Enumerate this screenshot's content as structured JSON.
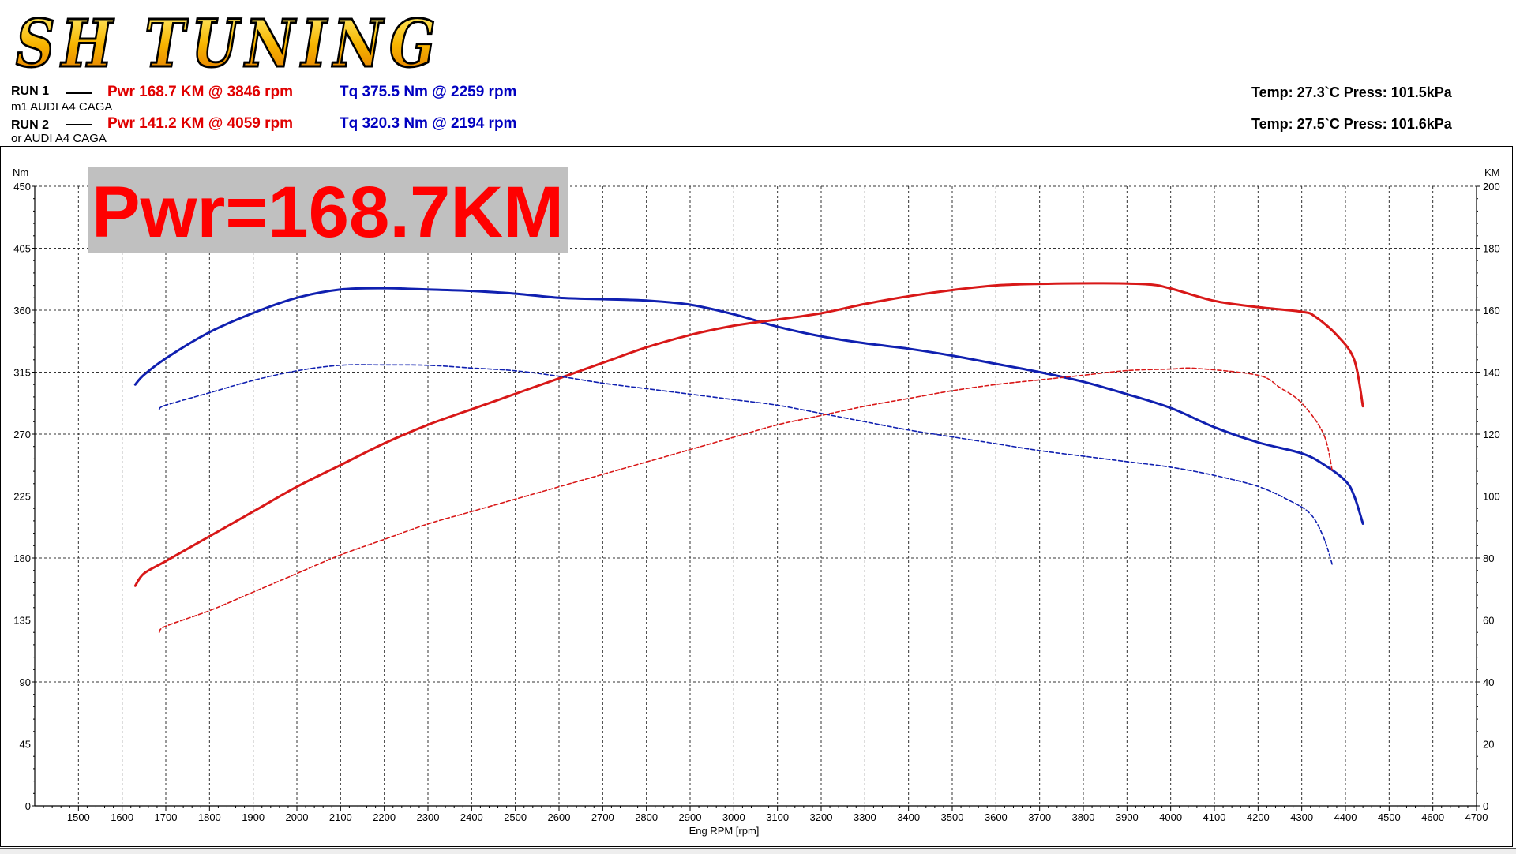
{
  "header": {
    "logo_text": "SH TUNING",
    "run1": {
      "label": "RUN 1",
      "car": "m1 AUDI A4 CAGA",
      "pwr": "Pwr  168.7 KM @ 3846 rpm",
      "tq": "Tq 375.5 Nm @ 2259 rpm",
      "env": "Temp: 27.3`C    Press: 101.5kPa"
    },
    "run2": {
      "label": "RUN 2",
      "car": "or AUDI A4 CAGA",
      "pwr": "Pwr  141.2 KM @ 4059 rpm",
      "tq": "Tq 320.3 Nm @ 2194 rpm",
      "env": "Temp: 27.5`C    Press: 101.6kPa"
    }
  },
  "banner": "Pwr=168.7KM",
  "colors": {
    "power": "#d81818",
    "torque": "#1020b0",
    "banner_bg": "#c0c0c0",
    "banner_text": "#ff0000"
  },
  "chart_data": {
    "type": "line",
    "xlabel": "Eng RPM [rpm]",
    "ylabel_left": "Nm",
    "ylabel_right": "KM",
    "xlim": [
      1400,
      4700
    ],
    "ylim_left": [
      0,
      450
    ],
    "ylim_right": [
      0,
      200
    ],
    "x_ticks": [
      1500,
      1600,
      1700,
      1800,
      1900,
      2000,
      2100,
      2200,
      2300,
      2400,
      2500,
      2600,
      2700,
      2800,
      2900,
      3000,
      3100,
      3200,
      3300,
      3400,
      3500,
      3600,
      3700,
      3800,
      3900,
      4000,
      4100,
      4200,
      4300,
      4400,
      4500,
      4600,
      4700
    ],
    "y_ticks_left": [
      0,
      45,
      90,
      135,
      180,
      225,
      270,
      315,
      360,
      405,
      450
    ],
    "y_ticks_right": [
      0,
      20,
      40,
      60,
      80,
      100,
      120,
      140,
      160,
      180,
      200
    ],
    "grid": true,
    "series": [
      {
        "run": 1,
        "quantity": "torque",
        "axis": "left",
        "style": "solid",
        "x": [
          1630,
          1650,
          1700,
          1800,
          1900,
          2000,
          2100,
          2200,
          2259,
          2300,
          2400,
          2500,
          2600,
          2700,
          2800,
          2900,
          3000,
          3100,
          3200,
          3300,
          3400,
          3500,
          3600,
          3700,
          3800,
          3900,
          4000,
          4100,
          4200,
          4300,
          4350,
          4400,
          4420,
          4440
        ],
        "y": [
          306,
          313,
          325,
          344,
          358,
          369,
          375,
          376,
          375.5,
          375,
          374,
          372,
          369,
          368,
          367,
          364,
          357,
          348,
          341,
          336,
          332,
          327,
          321,
          315,
          308,
          299,
          289,
          275,
          264,
          256,
          248,
          236,
          225,
          205
        ]
      },
      {
        "run": 1,
        "quantity": "power",
        "axis": "right",
        "style": "solid",
        "x": [
          1630,
          1650,
          1700,
          1800,
          1900,
          2000,
          2100,
          2200,
          2300,
          2400,
          2500,
          2600,
          2700,
          2800,
          2900,
          3000,
          3100,
          3200,
          3300,
          3400,
          3500,
          3600,
          3700,
          3846,
          3950,
          4000,
          4100,
          4200,
          4300,
          4330,
          4380,
          4420,
          4440
        ],
        "y": [
          71,
          75,
          79,
          87,
          95,
          103,
          110,
          117,
          123,
          128,
          133,
          138,
          143,
          148,
          152,
          155,
          157,
          159,
          162,
          164.5,
          166.5,
          168,
          168.5,
          168.7,
          168.3,
          167,
          163,
          161,
          159.5,
          158,
          152,
          144,
          129
        ]
      },
      {
        "run": 2,
        "quantity": "torque",
        "axis": "left",
        "style": "dashed",
        "x": [
          1685,
          1700,
          1800,
          1900,
          2000,
          2100,
          2194,
          2300,
          2400,
          2500,
          2600,
          2700,
          2800,
          2900,
          3000,
          3100,
          3200,
          3300,
          3400,
          3500,
          3600,
          3700,
          3800,
          3900,
          4000,
          4100,
          4200,
          4270,
          4320,
          4350,
          4370
        ],
        "y": [
          288,
          291,
          300,
          309,
          316,
          320,
          320.3,
          320,
          318,
          316,
          312,
          307,
          303,
          299,
          295,
          291,
          285,
          279,
          273,
          268,
          263,
          258,
          254,
          250,
          246,
          240,
          232,
          222,
          212,
          195,
          175
        ]
      },
      {
        "run": 2,
        "quantity": "power",
        "axis": "right",
        "style": "dashed",
        "x": [
          1685,
          1700,
          1800,
          1900,
          2000,
          2100,
          2200,
          2300,
          2400,
          2500,
          2600,
          2700,
          2800,
          2900,
          3000,
          3100,
          3200,
          3300,
          3400,
          3500,
          3600,
          3700,
          3800,
          3900,
          4000,
          4059,
          4200,
          4250,
          4300,
          4350,
          4370
        ],
        "y": [
          56,
          58,
          63,
          69,
          75,
          81,
          86,
          91,
          95,
          99,
          103,
          107,
          111,
          115,
          119,
          123,
          126,
          129,
          131.5,
          134,
          136,
          137.5,
          139,
          140.5,
          141,
          141.2,
          139,
          135,
          130,
          120,
          108
        ]
      }
    ]
  }
}
